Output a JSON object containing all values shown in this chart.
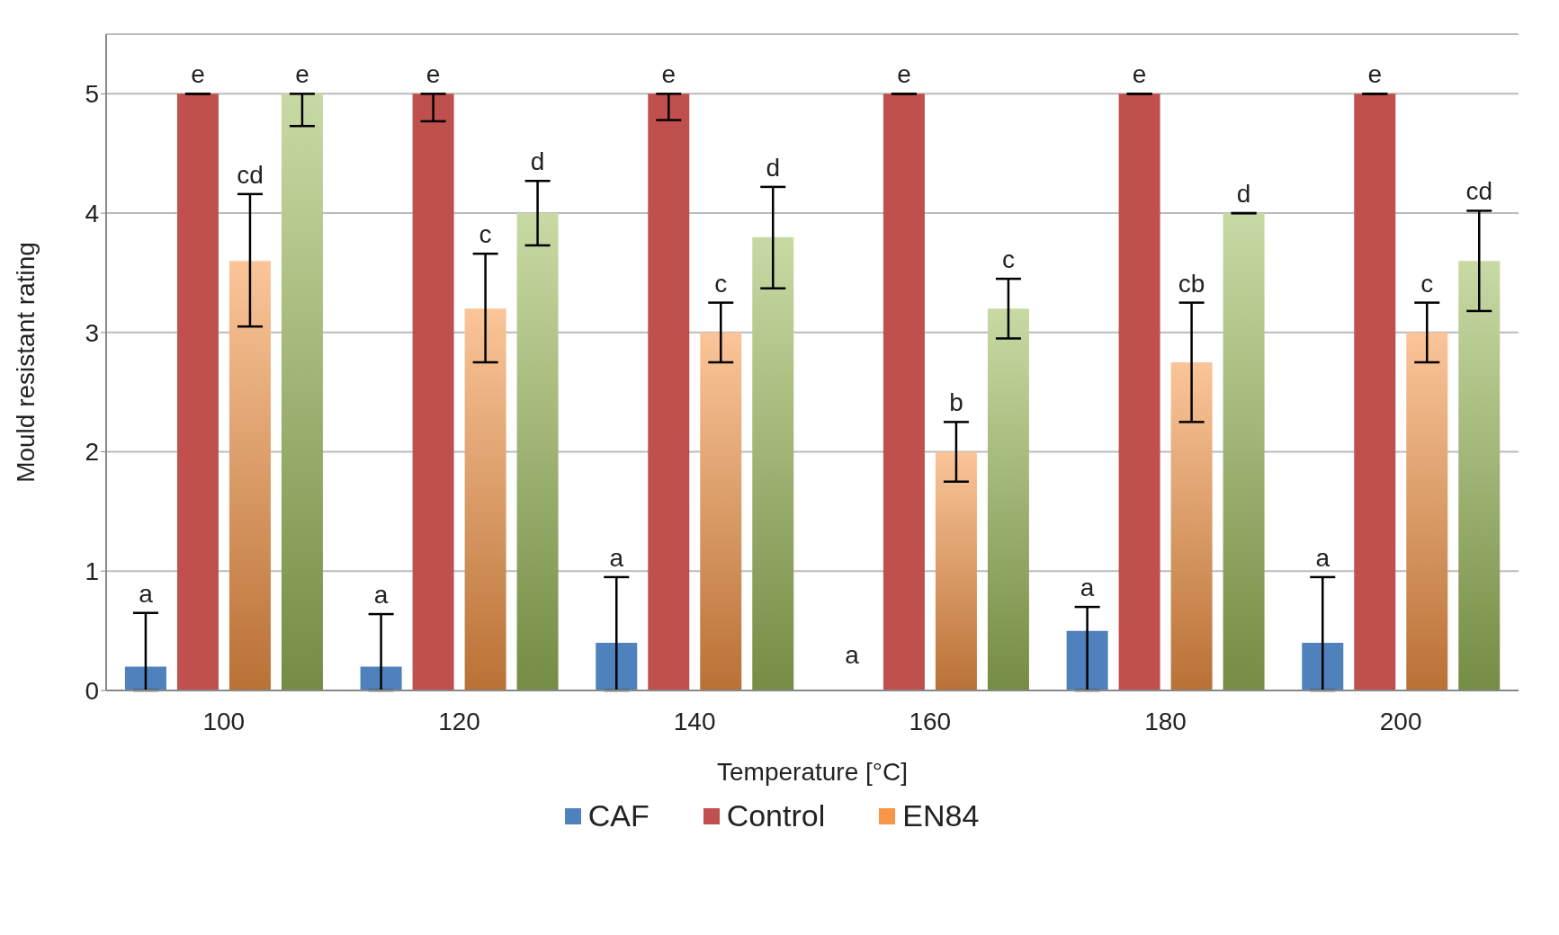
{
  "chart_data": {
    "type": "bar",
    "xlabel": "Temperature [°C]",
    "ylabel": "Mould resistant rating",
    "categories": [
      "100",
      "120",
      "140",
      "160",
      "180",
      "200"
    ],
    "series": [
      {
        "name": "CAF",
        "color": "#4f81bd",
        "values": [
          0.2,
          0.2,
          0.4,
          0,
          0.5,
          0.4
        ],
        "errors": [
          [
            0,
            0.65
          ],
          [
            0,
            0.64
          ],
          [
            0,
            0.95
          ],
          null,
          [
            0,
            0.7
          ],
          [
            0,
            0.95
          ]
        ]
      },
      {
        "name": "Control",
        "color": "#c0504d",
        "values": [
          5,
          5,
          5,
          5,
          5,
          5
        ],
        "errors": [
          [
            5,
            5
          ],
          [
            4.77,
            5
          ],
          [
            4.78,
            5
          ],
          [
            5,
            5
          ],
          [
            5,
            5
          ],
          [
            5,
            5
          ]
        ]
      },
      {
        "name": "EN84",
        "color": "#f79646",
        "values": [
          3.6,
          3.2,
          3,
          2,
          2.75,
          3
        ],
        "errors": [
          [
            3.05,
            4.16
          ],
          [
            2.75,
            3.66
          ],
          [
            2.75,
            3.25
          ],
          [
            1.75,
            2.25
          ],
          [
            2.25,
            3.25
          ],
          [
            2.75,
            3.25
          ]
        ]
      },
      {
        "color": "#9bbb59",
        "values": [
          5,
          4,
          3.8,
          3.2,
          4,
          3.6
        ],
        "errors": [
          [
            4.73,
            5
          ],
          [
            3.73,
            4.27
          ],
          [
            3.37,
            4.22
          ],
          [
            2.95,
            3.45
          ],
          [
            4,
            4
          ],
          [
            3.18,
            4.02
          ]
        ]
      }
    ],
    "ylim": [
      0,
      5.5
    ],
    "yticks": [
      0,
      1,
      2,
      3,
      4,
      5
    ],
    "grid": "y",
    "legend": "bottom",
    "annotations": [
      "a",
      "e",
      "cd",
      "e",
      "a",
      "e",
      "c",
      "d",
      "a",
      "e",
      "c",
      "d",
      "a",
      "e",
      "b",
      "c",
      "a",
      "e",
      "cb",
      "d",
      "a",
      "e",
      "c",
      "cd"
    ]
  }
}
